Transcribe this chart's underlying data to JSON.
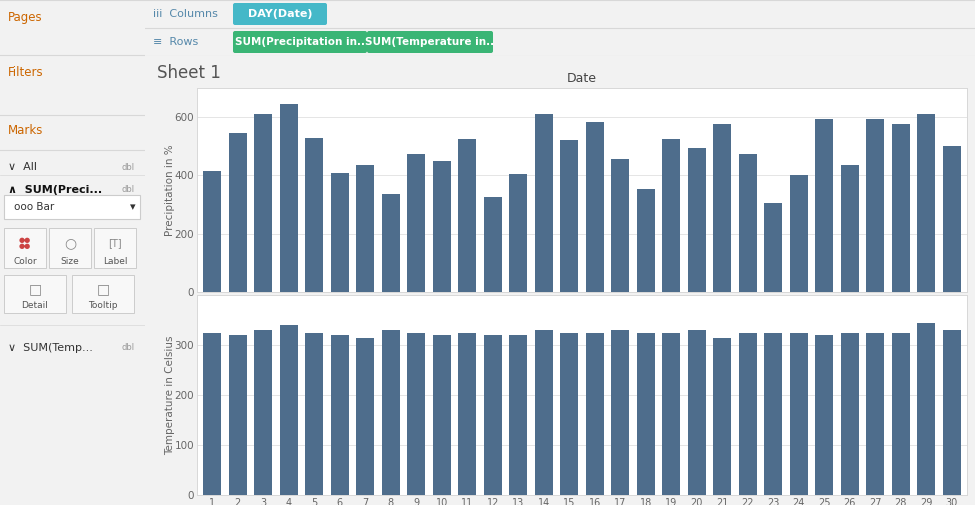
{
  "title_x": "Date",
  "sheet_title": "Sheet 1",
  "bar_color": "#4e6d8c",
  "days": [
    1,
    2,
    3,
    4,
    5,
    6,
    7,
    8,
    9,
    10,
    11,
    12,
    13,
    14,
    15,
    16,
    17,
    18,
    19,
    20,
    21,
    22,
    23,
    24,
    25,
    26,
    27,
    28,
    29,
    30
  ],
  "precipitation": [
    415,
    545,
    610,
    645,
    530,
    410,
    435,
    335,
    475,
    450,
    525,
    325,
    405,
    610,
    520,
    585,
    455,
    355,
    525,
    495,
    575,
    475,
    305,
    400,
    595,
    435,
    595,
    575,
    610,
    500
  ],
  "temperature": [
    325,
    320,
    330,
    340,
    325,
    320,
    315,
    330,
    325,
    320,
    325,
    320,
    320,
    330,
    325,
    325,
    330,
    325,
    325,
    330,
    315,
    325,
    325,
    325,
    320,
    325,
    325,
    325,
    345,
    330
  ],
  "precip_ylim": [
    0,
    700
  ],
  "precip_yticks": [
    0,
    200,
    400,
    600
  ],
  "temp_ylim": [
    0,
    400
  ],
  "temp_yticks": [
    0,
    100,
    200,
    300
  ],
  "ylabel_precip": "Precipitation in %",
  "ylabel_temp": "Temperature in Celsius",
  "panel_bg": "#ffffff",
  "outer_bg": "#f2f2f2",
  "sidebar_bg": "#f0f0f0",
  "grid_color": "#e0e0e0",
  "header_bg": "#f2f2f2",
  "col_pill_color": "#45b8c8",
  "row_pill_color": "#3ab575",
  "text_color_label": "#888888",
  "text_color_dark": "#444444",
  "border_color": "#d8d8d8"
}
